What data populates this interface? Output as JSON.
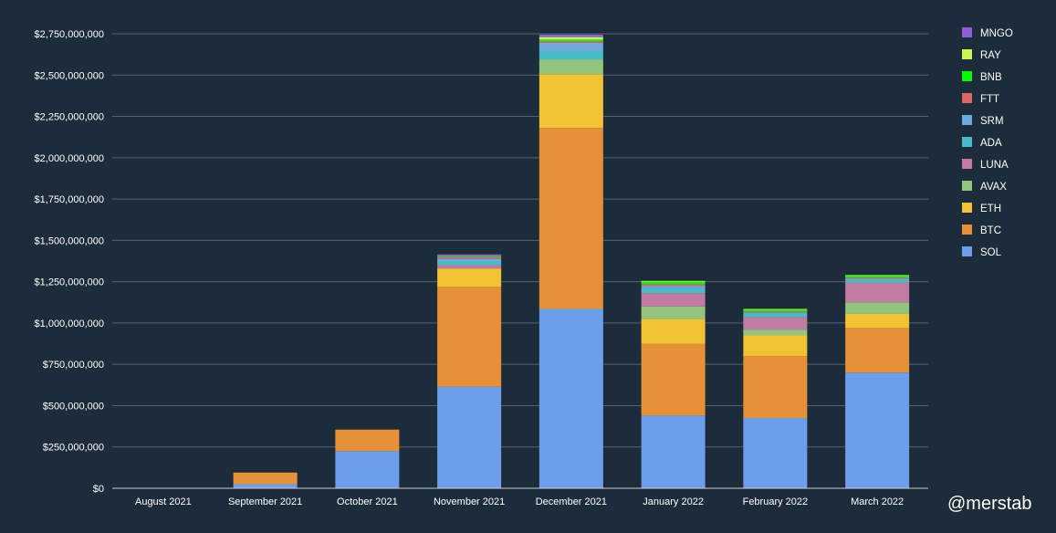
{
  "chart_data": {
    "type": "bar",
    "stacked": true,
    "title": "",
    "xlabel": "",
    "ylabel": "",
    "ylim": [
      0,
      2750000000
    ],
    "ytick_step": 250000000,
    "ytick_labels": [
      "$0",
      "$250,000,000",
      "$500,000,000",
      "$750,000,000",
      "$1,000,000,000",
      "$1,250,000,000",
      "$1,500,000,000",
      "$1,750,000,000",
      "$2,000,000,000",
      "$2,250,000,000",
      "$2,500,000,000",
      "$2,750,000,000"
    ],
    "grid": true,
    "legend_position": "right",
    "categories": [
      "August 2021",
      "September 2021",
      "October 2021",
      "November 2021",
      "December 2021",
      "January 2022",
      "February 2022",
      "March 2022"
    ],
    "series": [
      {
        "name": "SOL",
        "color": "#6d9eeb",
        "values": [
          0,
          25000000,
          225000000,
          615000000,
          1085000000,
          440000000,
          425000000,
          700000000
        ]
      },
      {
        "name": "BTC",
        "color": "#e69138",
        "values": [
          0,
          70000000,
          130000000,
          605000000,
          1095000000,
          435000000,
          375000000,
          270000000
        ]
      },
      {
        "name": "ETH",
        "color": "#f1c232",
        "values": [
          0,
          0,
          0,
          110000000,
          325000000,
          150000000,
          125000000,
          85000000
        ]
      },
      {
        "name": "AVAX",
        "color": "#93c47d",
        "values": [
          0,
          0,
          0,
          0,
          90000000,
          75000000,
          35000000,
          70000000
        ]
      },
      {
        "name": "LUNA",
        "color": "#c27ba0",
        "values": [
          0,
          0,
          0,
          20000000,
          0,
          80000000,
          75000000,
          120000000
        ]
      },
      {
        "name": "ADA",
        "color": "#46bdc6",
        "values": [
          0,
          0,
          0,
          25000000,
          50000000,
          30000000,
          20000000,
          20000000
        ]
      },
      {
        "name": "SRM",
        "color": "#6fa8dc",
        "values": [
          0,
          0,
          0,
          15000000,
          50000000,
          15000000,
          10000000,
          5000000
        ]
      },
      {
        "name": "FTT",
        "color": "#e06666",
        "values": [
          0,
          0,
          0,
          10000000,
          10000000,
          10000000,
          5000000,
          5000000
        ]
      },
      {
        "name": "BNB",
        "color": "#00ff00",
        "values": [
          0,
          0,
          0,
          5000000,
          10000000,
          15000000,
          10000000,
          10000000
        ]
      },
      {
        "name": "RAY",
        "color": "#c9f551",
        "values": [
          0,
          0,
          0,
          0,
          15000000,
          5000000,
          5000000,
          5000000
        ]
      },
      {
        "name": "MNGO",
        "color": "#8e5edc",
        "values": [
          0,
          0,
          0,
          10000000,
          15000000,
          0,
          0,
          0
        ]
      }
    ]
  },
  "watermark": "@merstab"
}
